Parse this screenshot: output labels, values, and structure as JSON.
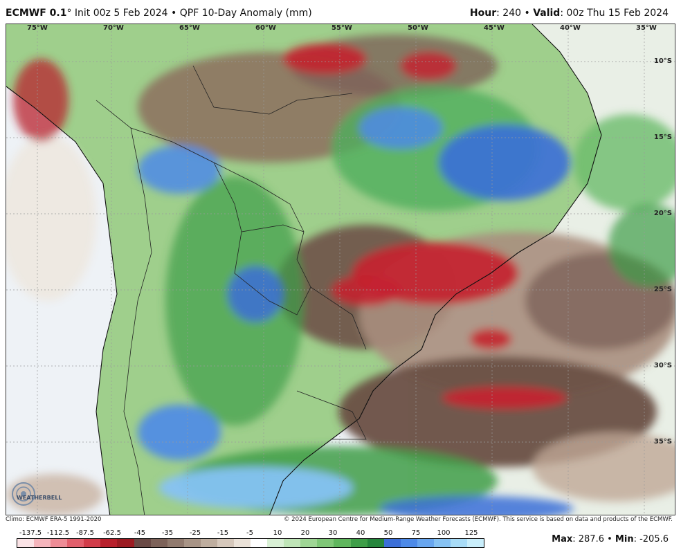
{
  "header": {
    "model": "ECMWF 0.1",
    "degree_mark": "°",
    "init_text": " Init 00z 5 Feb 2024 • QPF 10-Day Anomaly (mm)",
    "hour_label": "Hour",
    "hour_value": ": 240 • ",
    "valid_label": "Valid",
    "valid_value": ": 00z Thu 15 Feb 2024"
  },
  "map": {
    "longitudes": [
      "75°W",
      "70°W",
      "65°W",
      "60°W",
      "55°W",
      "50°W",
      "45°W",
      "40°W",
      "35°W"
    ],
    "latitudes": [
      "10°S",
      "15°S",
      "20°S",
      "25°S",
      "30°S",
      "35°S"
    ]
  },
  "footer": {
    "climo": "Climo: ECMWF ERA-5 1991-2020",
    "copyright": "© 2024 European Centre for Medium-Range Weather Forecasts (ECMWF). This service is based on data and products of the ECMWF."
  },
  "legend": {
    "ticks": [
      "-137.5",
      "-112.5",
      "-87.5",
      "-62.5",
      "-45",
      "-35",
      "-25",
      "-15",
      "-5",
      "10",
      "20",
      "30",
      "40",
      "50",
      "75",
      "100",
      "125"
    ],
    "colors": [
      "#fbe3e6",
      "#f5b5bc",
      "#ee8c96",
      "#e25f6c",
      "#d23d4a",
      "#b8202c",
      "#9c1b22",
      "#6a4a46",
      "#7d6259",
      "#917a6e",
      "#a89486",
      "#bfae9f",
      "#d6c8bb",
      "#ebe2d8",
      "#ffffff",
      "#d9f0d5",
      "#bfe5b7",
      "#9fd695",
      "#7fc777",
      "#5fb65d",
      "#3e9e48",
      "#26863d",
      "#3b6fd8",
      "#4d8ae8",
      "#68a6ef",
      "#86c2f3",
      "#a8dcf7",
      "#c9eefb"
    ]
  },
  "stats": {
    "max_label": "Max",
    "max_value": ": 287.6 • ",
    "min_label": "Min",
    "min_value": ": -205.6"
  },
  "logo": {
    "text": "WEATHERBELL"
  }
}
